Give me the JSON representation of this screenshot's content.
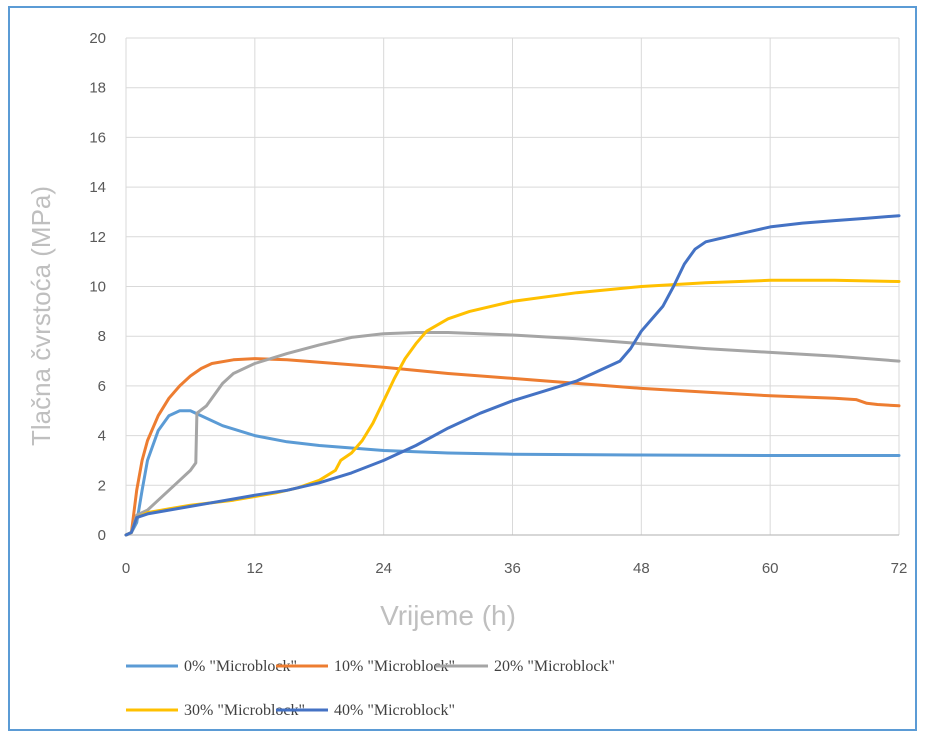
{
  "chart_data": {
    "type": "line",
    "xlabel": "Vrijeme (h)",
    "ylabel": "Tlačna čvrstoća (MPa)",
    "xlim": [
      0,
      72
    ],
    "ylim": [
      0,
      20
    ],
    "xticks": [
      0,
      12,
      24,
      36,
      48,
      60,
      72
    ],
    "yticks": [
      0,
      2,
      4,
      6,
      8,
      10,
      12,
      14,
      16,
      18,
      20
    ],
    "grid": true,
    "legend_position": "bottom",
    "series": [
      {
        "name": "0% \"Microblock\"",
        "color": "#5b9bd5",
        "points": [
          [
            0,
            0
          ],
          [
            0.5,
            0.1
          ],
          [
            1,
            0.5
          ],
          [
            1.5,
            1.8
          ],
          [
            2,
            3.0
          ],
          [
            3,
            4.2
          ],
          [
            4,
            4.8
          ],
          [
            5,
            5.0
          ],
          [
            6,
            5.0
          ],
          [
            7,
            4.8
          ],
          [
            9,
            4.4
          ],
          [
            12,
            4.0
          ],
          [
            15,
            3.75
          ],
          [
            18,
            3.6
          ],
          [
            21,
            3.5
          ],
          [
            24,
            3.4
          ],
          [
            30,
            3.3
          ],
          [
            36,
            3.25
          ],
          [
            48,
            3.22
          ],
          [
            60,
            3.2
          ],
          [
            72,
            3.2
          ]
        ]
      },
      {
        "name": "10% \"Microblock\"",
        "color": "#ed7d31",
        "points": [
          [
            0,
            0
          ],
          [
            0.5,
            0.1
          ],
          [
            1,
            1.8
          ],
          [
            1.5,
            3.0
          ],
          [
            2,
            3.8
          ],
          [
            3,
            4.8
          ],
          [
            4,
            5.5
          ],
          [
            5,
            6.0
          ],
          [
            6,
            6.4
          ],
          [
            7,
            6.7
          ],
          [
            8,
            6.9
          ],
          [
            10,
            7.05
          ],
          [
            12,
            7.1
          ],
          [
            15,
            7.05
          ],
          [
            18,
            6.95
          ],
          [
            24,
            6.75
          ],
          [
            30,
            6.5
          ],
          [
            36,
            6.3
          ],
          [
            42,
            6.1
          ],
          [
            48,
            5.9
          ],
          [
            54,
            5.75
          ],
          [
            60,
            5.6
          ],
          [
            66,
            5.5
          ],
          [
            68,
            5.45
          ],
          [
            69,
            5.3
          ],
          [
            70,
            5.25
          ],
          [
            72,
            5.2
          ]
        ]
      },
      {
        "name": "20% \"Microblock\"",
        "color": "#a5a5a5",
        "points": [
          [
            0,
            0
          ],
          [
            0.5,
            0.1
          ],
          [
            1,
            0.8
          ],
          [
            2,
            1.0
          ],
          [
            3,
            1.4
          ],
          [
            4,
            1.8
          ],
          [
            5,
            2.2
          ],
          [
            6,
            2.6
          ],
          [
            6.5,
            2.9
          ],
          [
            6.6,
            4.9
          ],
          [
            7.5,
            5.2
          ],
          [
            8,
            5.5
          ],
          [
            9,
            6.1
          ],
          [
            10,
            6.5
          ],
          [
            12,
            6.9
          ],
          [
            15,
            7.3
          ],
          [
            18,
            7.65
          ],
          [
            21,
            7.95
          ],
          [
            24,
            8.1
          ],
          [
            27,
            8.15
          ],
          [
            30,
            8.15
          ],
          [
            36,
            8.05
          ],
          [
            42,
            7.9
          ],
          [
            48,
            7.7
          ],
          [
            54,
            7.5
          ],
          [
            60,
            7.35
          ],
          [
            66,
            7.2
          ],
          [
            72,
            7.0
          ]
        ]
      },
      {
        "name": "30% \"Microblock\"",
        "color": "#ffc000",
        "points": [
          [
            0,
            0
          ],
          [
            0.5,
            0.1
          ],
          [
            1,
            0.7
          ],
          [
            2,
            0.9
          ],
          [
            4,
            1.05
          ],
          [
            6,
            1.2
          ],
          [
            8,
            1.3
          ],
          [
            10,
            1.4
          ],
          [
            12,
            1.55
          ],
          [
            14,
            1.7
          ],
          [
            16,
            1.9
          ],
          [
            18,
            2.2
          ],
          [
            19.5,
            2.6
          ],
          [
            20,
            3.0
          ],
          [
            21,
            3.3
          ],
          [
            22,
            3.8
          ],
          [
            23,
            4.5
          ],
          [
            24,
            5.4
          ],
          [
            25,
            6.3
          ],
          [
            26,
            7.1
          ],
          [
            27,
            7.7
          ],
          [
            28,
            8.2
          ],
          [
            30,
            8.7
          ],
          [
            32,
            9.0
          ],
          [
            36,
            9.4
          ],
          [
            42,
            9.75
          ],
          [
            48,
            10.0
          ],
          [
            54,
            10.15
          ],
          [
            60,
            10.25
          ],
          [
            66,
            10.25
          ],
          [
            72,
            10.2
          ]
        ]
      },
      {
        "name": "40% \"Microblock\"",
        "color": "#4472c4",
        "points": [
          [
            0,
            0
          ],
          [
            0.5,
            0.1
          ],
          [
            1,
            0.7
          ],
          [
            2,
            0.85
          ],
          [
            4,
            1.0
          ],
          [
            6,
            1.15
          ],
          [
            8,
            1.3
          ],
          [
            10,
            1.45
          ],
          [
            12,
            1.6
          ],
          [
            15,
            1.8
          ],
          [
            18,
            2.1
          ],
          [
            21,
            2.5
          ],
          [
            24,
            3.0
          ],
          [
            27,
            3.6
          ],
          [
            30,
            4.3
          ],
          [
            33,
            4.9
          ],
          [
            36,
            5.4
          ],
          [
            39,
            5.8
          ],
          [
            42,
            6.2
          ],
          [
            44,
            6.6
          ],
          [
            46,
            7.0
          ],
          [
            47,
            7.5
          ],
          [
            48,
            8.2
          ],
          [
            50,
            9.2
          ],
          [
            51,
            10.0
          ],
          [
            52,
            10.9
          ],
          [
            53,
            11.5
          ],
          [
            54,
            11.8
          ],
          [
            56,
            12.0
          ],
          [
            58,
            12.2
          ],
          [
            60,
            12.4
          ],
          [
            63,
            12.55
          ],
          [
            66,
            12.65
          ],
          [
            69,
            12.75
          ],
          [
            72,
            12.85
          ]
        ]
      }
    ]
  }
}
